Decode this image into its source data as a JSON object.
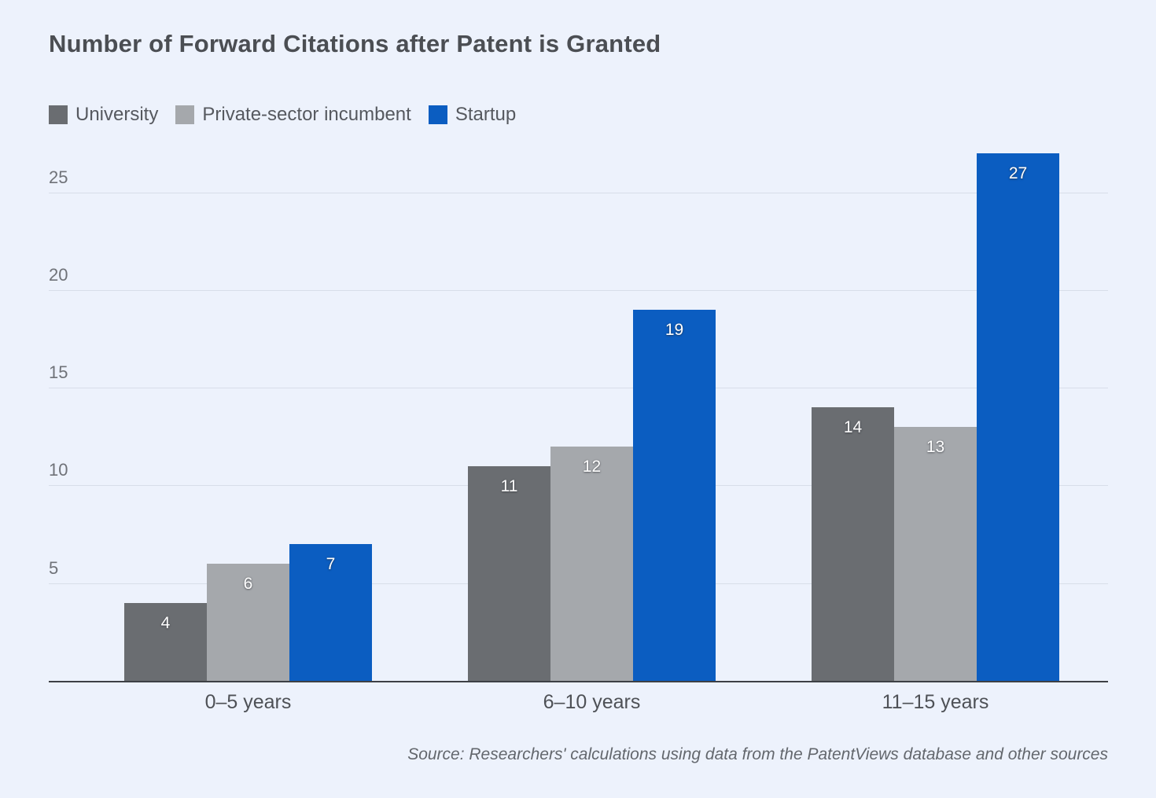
{
  "title": "Number of Forward Citations after Patent is Granted",
  "source_note": "Source: Researchers' calculations using data from the PatentViews database and other sources",
  "colors": {
    "background": "#edf2fc",
    "university": "#6a6d71",
    "private_sector": "#a5a8ac",
    "startup": "#0b5dc1",
    "axis_line": "#3d4045",
    "gridline": "#d8dee9",
    "title_text": "#4b4e53",
    "tick_text": "#6f7278",
    "value_label_text": "#ffffff"
  },
  "chart_data": {
    "type": "bar",
    "title": "Number of Forward Citations after Patent is Granted",
    "categories": [
      "0–5 years",
      "6–10 years",
      "11–15 years"
    ],
    "series": [
      {
        "name": "University",
        "color": "#6a6d71",
        "values": [
          4,
          11,
          14
        ]
      },
      {
        "name": "Private-sector incumbent",
        "color": "#a5a8ac",
        "values": [
          6,
          12,
          13
        ]
      },
      {
        "name": "Startup",
        "color": "#0b5dc1",
        "values": [
          7,
          19,
          27
        ]
      }
    ],
    "xlabel": "",
    "ylabel": "",
    "yticks": [
      5,
      10,
      15,
      20,
      25
    ],
    "ylim": [
      0,
      27.2
    ],
    "grid": "horizontal",
    "legend_position": "top-left",
    "value_labels": "inside-top"
  }
}
